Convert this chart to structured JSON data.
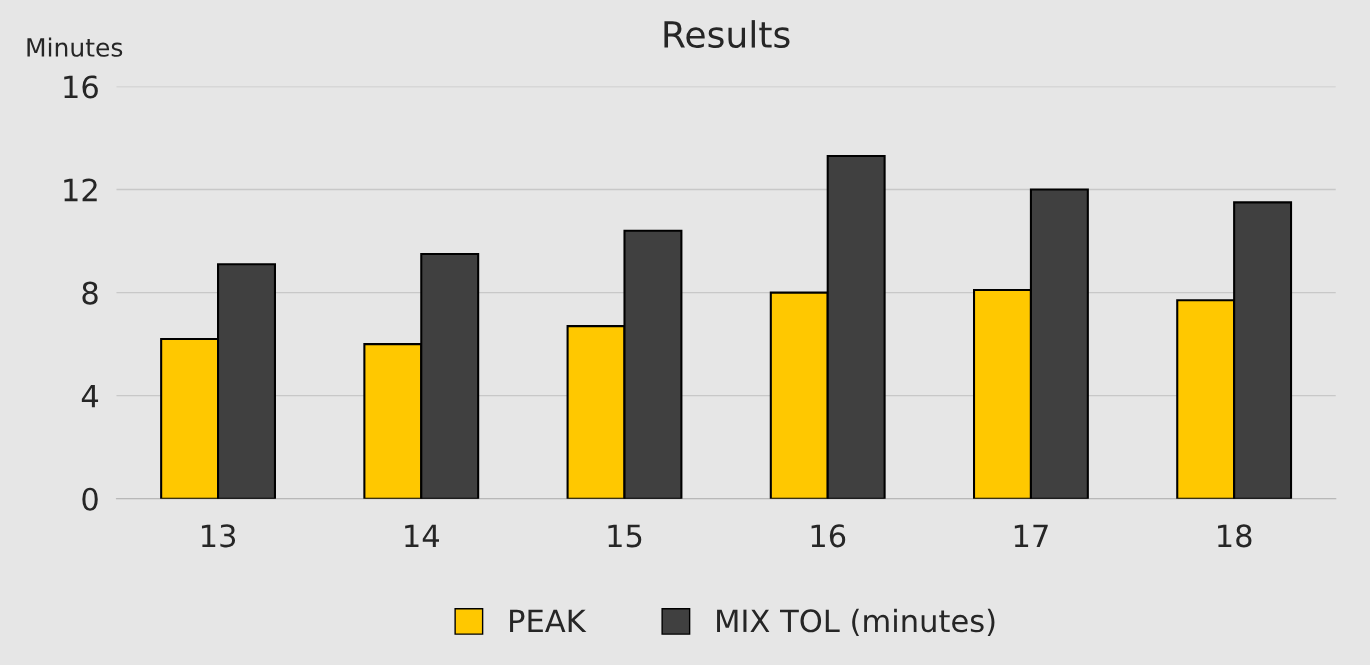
{
  "chart_data": {
    "type": "bar",
    "title": "Results",
    "ylabel": "Minutes",
    "categories": [
      "13",
      "14",
      "15",
      "16",
      "17",
      "18"
    ],
    "series": [
      {
        "name": "PEAK",
        "color": "#ffc800",
        "values": [
          6.2,
          6.0,
          6.7,
          8.0,
          8.1,
          7.7
        ]
      },
      {
        "name": "MIX TOL (minutes)",
        "color": "#404040",
        "values": [
          9.1,
          9.5,
          10.4,
          13.3,
          12.0,
          11.5
        ]
      }
    ],
    "ylim": [
      0,
      16
    ],
    "yticks": [
      0,
      4,
      8,
      12,
      16
    ],
    "grid": "y",
    "legend": "bottom"
  }
}
